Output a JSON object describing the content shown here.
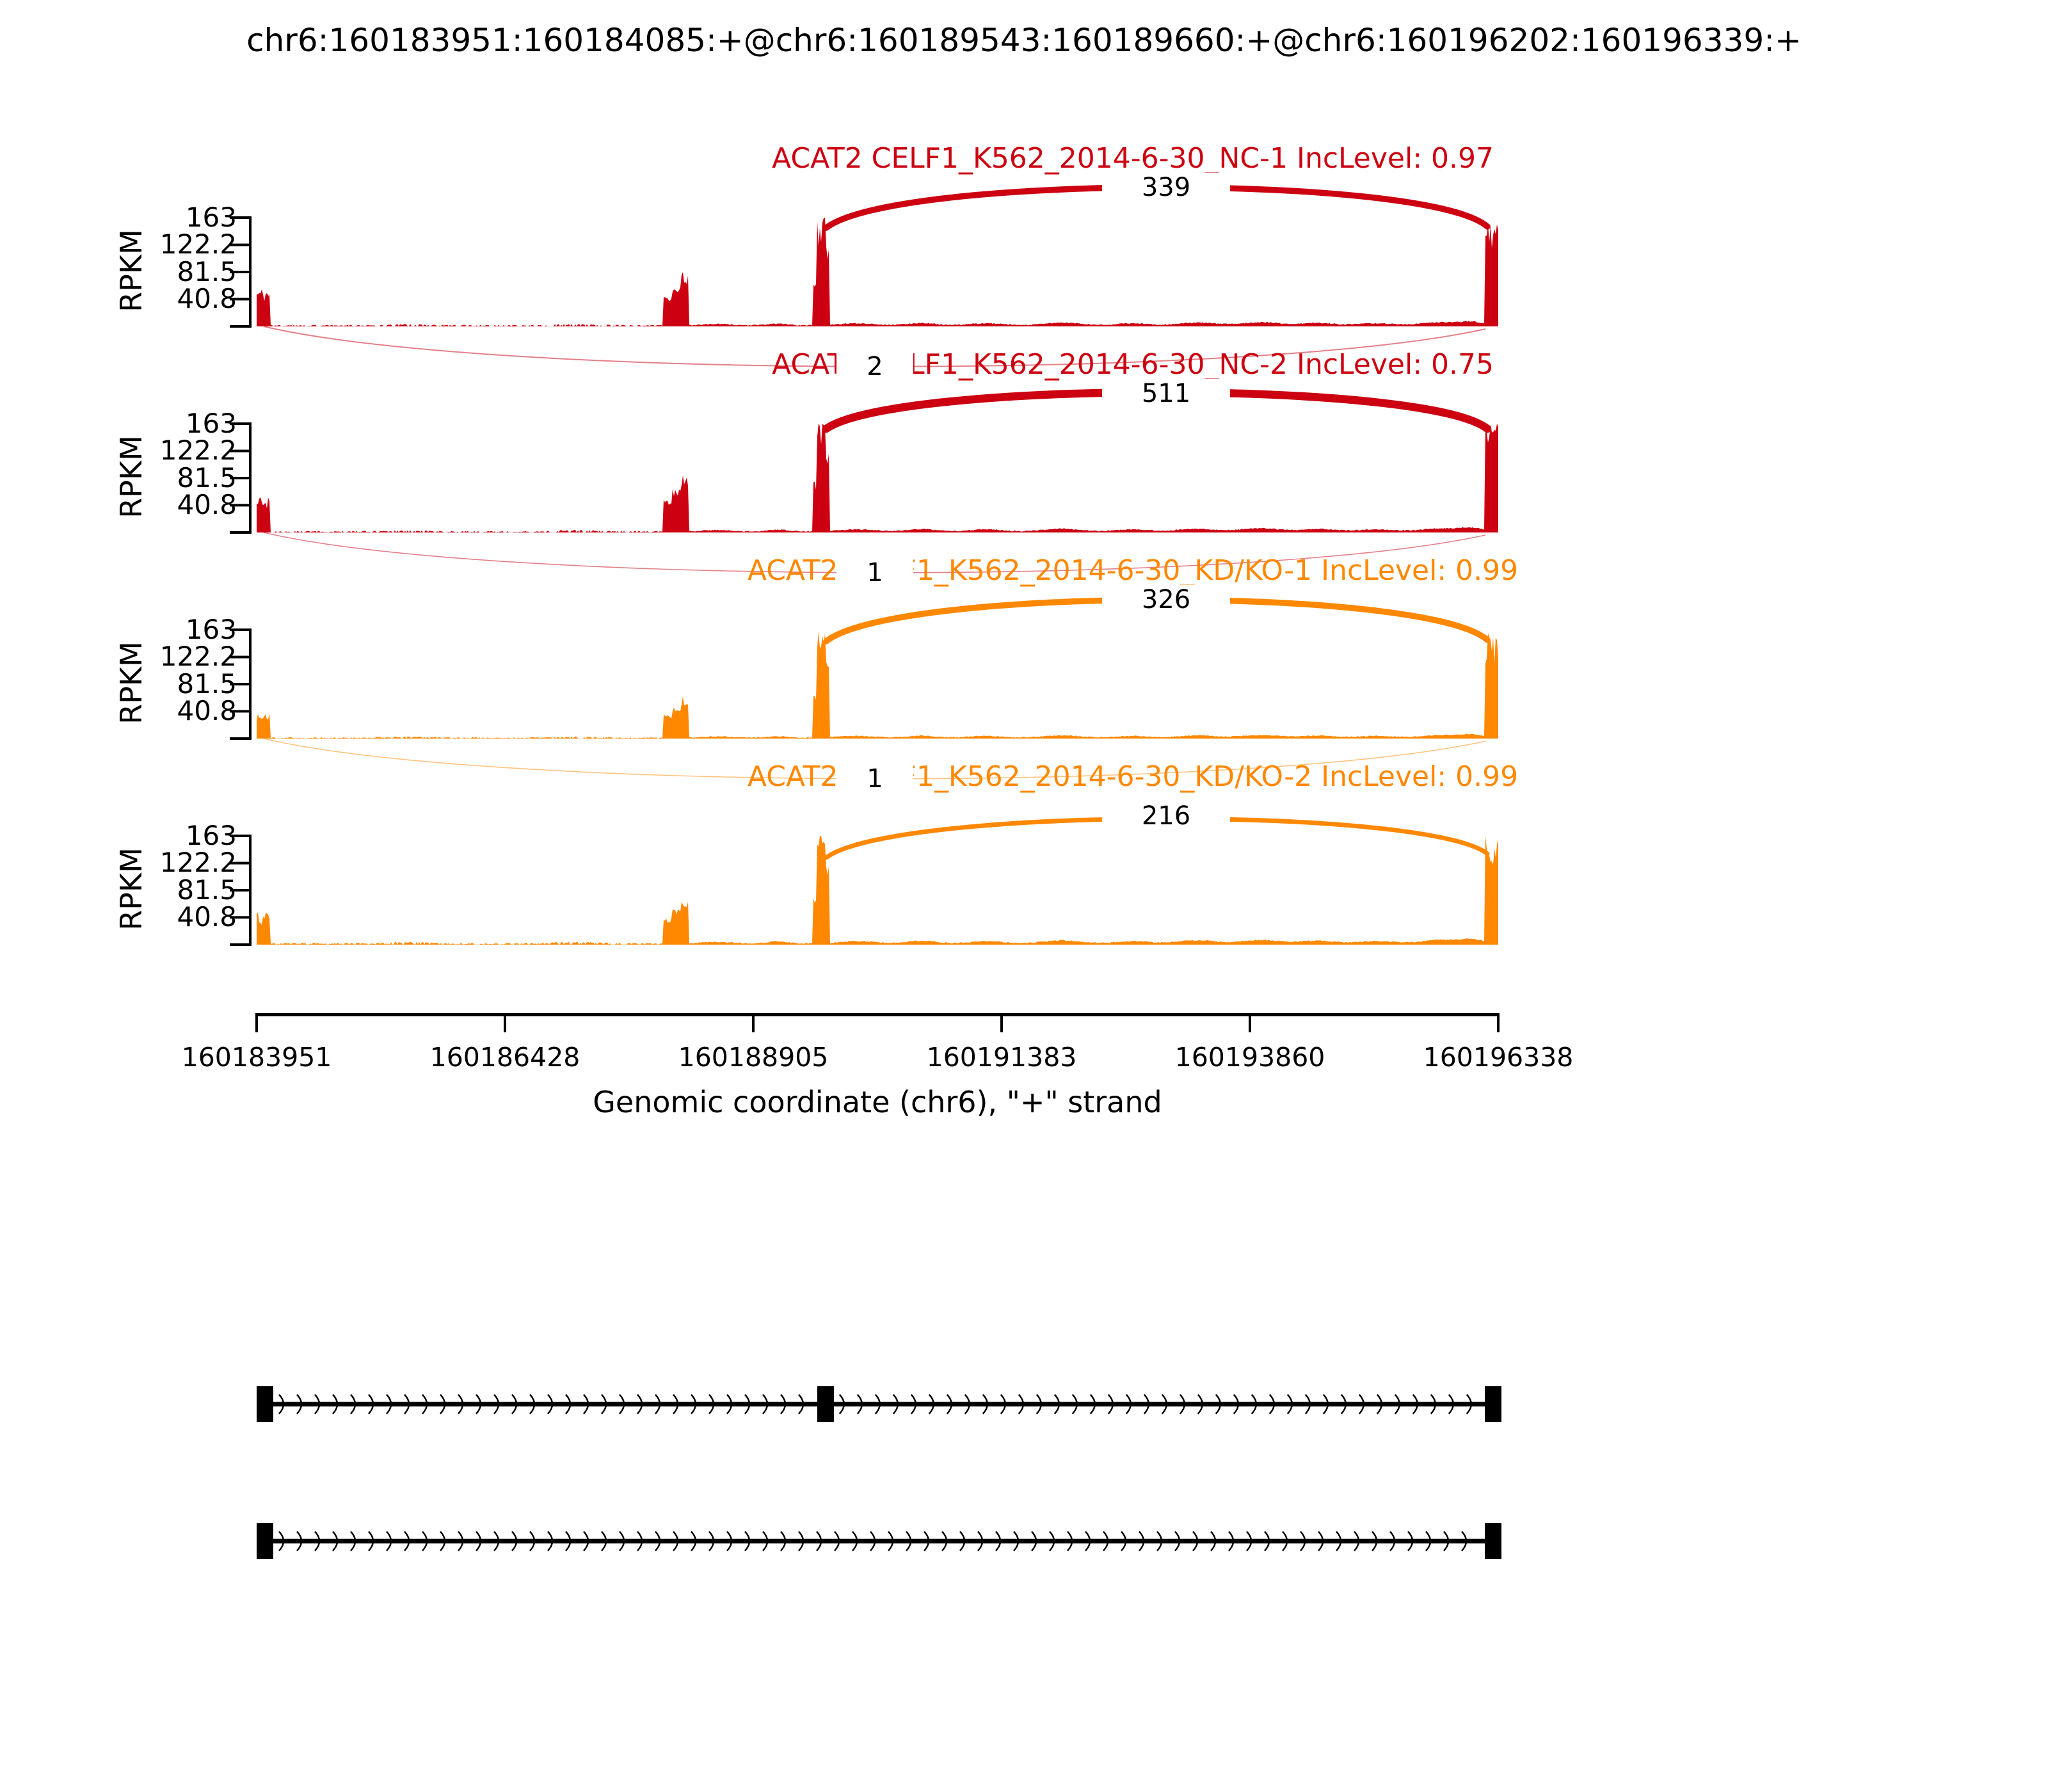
{
  "chart_data": {
    "type": "area",
    "title": "chr6:160183951:160184085:+@chr6:160189543:160189660:+@chr6:160196202:160196339:+",
    "xlabel": "Genomic coordinate (chr6), \"+\" strand",
    "ylabel": "RPKM",
    "ylim": [
      0,
      163
    ],
    "yticks": [
      "163",
      "122.2",
      "81.5",
      "40.8"
    ],
    "xticks": [
      "160183951",
      "160186428",
      "160188905",
      "160191383",
      "160193860",
      "160196338"
    ],
    "x_range_bp": [
      160183951,
      160196338
    ],
    "chromosome": "chr6",
    "strand": "+",
    "gene": "ACAT2",
    "event_exons_bp": {
      "upstream": [
        160183951,
        160184085
      ],
      "skipped": [
        160189543,
        160189660
      ],
      "downstream": [
        160196202,
        160196339
      ]
    },
    "unannotated_peak_bp": [
      160188010,
      160188260
    ],
    "tracks": [
      {
        "label": "ACAT2 CELF1_K562_2014-6-30_NC-1 IncLevel: 0.97",
        "sample": "NC-1",
        "inc_level": 0.97,
        "color": "#CC0011",
        "inclusion_junction_reads": "339",
        "skipping_junction_reads": "2",
        "est_peak_rpkm": {
          "upstream": 46,
          "mid": 74,
          "skipped": 150,
          "downstream": 138
        }
      },
      {
        "label": "ACAT2 CELF1_K562_2014-6-30_NC-2 IncLevel: 0.75",
        "sample": "NC-2",
        "inc_level": 0.75,
        "color": "#CC0011",
        "inclusion_junction_reads": "511",
        "skipping_junction_reads": "1",
        "est_peak_rpkm": {
          "upstream": 44,
          "mid": 80,
          "skipped": 160,
          "downstream": 152
        }
      },
      {
        "label": "ACAT2 CELF1_K562_2014-6-30_KD/KO-1 IncLevel: 0.99",
        "sample": "KD/KO-1",
        "inc_level": 0.99,
        "color": "#FF8800",
        "inclusion_junction_reads": "326",
        "skipping_junction_reads": "1",
        "est_peak_rpkm": {
          "upstream": 30,
          "mid": 58,
          "skipped": 148,
          "downstream": 140
        }
      },
      {
        "label": "ACAT2 CELF1_K562_2014-6-30_KD/KO-2 IncLevel: 0.99",
        "sample": "KD/KO-2",
        "inc_level": 0.99,
        "color": "#FF8800",
        "inclusion_junction_reads": "216",
        "skipping_junction_reads": null,
        "est_peak_rpkm": {
          "upstream": 38,
          "mid": 64,
          "skipped": 155,
          "downstream": 148
        }
      }
    ],
    "isoforms": [
      {
        "name": "inclusion",
        "exons_bp": [
          [
            160183951,
            160184085
          ],
          [
            160189543,
            160189660
          ],
          [
            160196202,
            160196339
          ]
        ]
      },
      {
        "name": "skipping",
        "exons_bp": [
          [
            160183951,
            160184085
          ],
          [
            160196202,
            160196339
          ]
        ]
      }
    ]
  }
}
